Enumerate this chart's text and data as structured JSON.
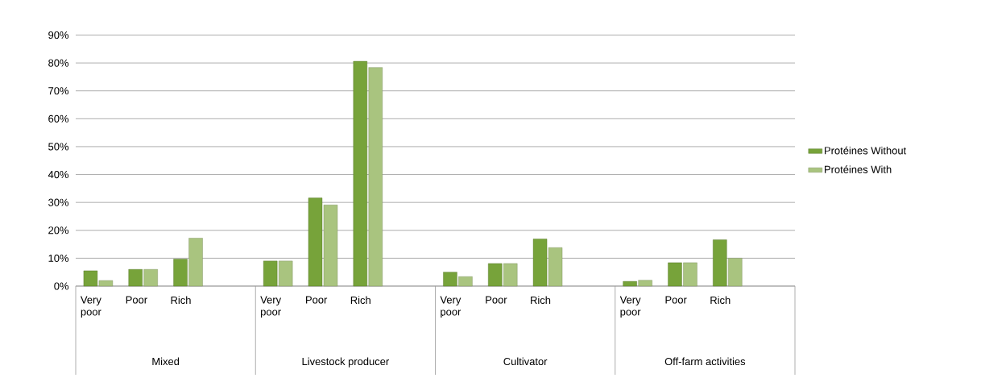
{
  "chart_data": {
    "type": "bar",
    "categories": [
      "Very poor",
      "Poor",
      "Rich",
      null,
      "Very poor",
      "Poor",
      "Rich",
      null,
      "Very poor",
      "Poor",
      "Rich",
      null,
      "Very poor",
      "Poor",
      "Rich",
      null
    ],
    "series": [
      {
        "name": "Protéines Without",
        "color": "#77a33a",
        "values": [
          5.5,
          6,
          9.7,
          null,
          9,
          31.6,
          80.6,
          null,
          5,
          8.1,
          16.9,
          null,
          1.7,
          8.4,
          16.6,
          null
        ]
      },
      {
        "name": "Protéines With",
        "color": "#a9c47f",
        "values": [
          2,
          6,
          17.2,
          null,
          9,
          29.1,
          78.4,
          null,
          3.4,
          8.1,
          13.8,
          null,
          2.1,
          8.4,
          10,
          null
        ]
      }
    ],
    "annotations": [
      "Mixed",
      "Livestock producer",
      "Cultivator",
      "Off-farm activities"
    ],
    "ylim": [
      0,
      90
    ],
    "yticks": [
      {
        "value": 0,
        "label": "0%"
      },
      {
        "value": 10,
        "label": "10%"
      },
      {
        "value": 20,
        "label": "20%"
      },
      {
        "value": 30,
        "label": "30%"
      },
      {
        "value": 40,
        "label": "40%"
      },
      {
        "value": 50,
        "label": "50%"
      },
      {
        "value": 60,
        "label": "60%"
      },
      {
        "value": 70,
        "label": "70%"
      },
      {
        "value": 80,
        "label": "80%"
      },
      {
        "value": 90,
        "label": "90%"
      }
    ],
    "grid": "y",
    "legend": "right"
  }
}
